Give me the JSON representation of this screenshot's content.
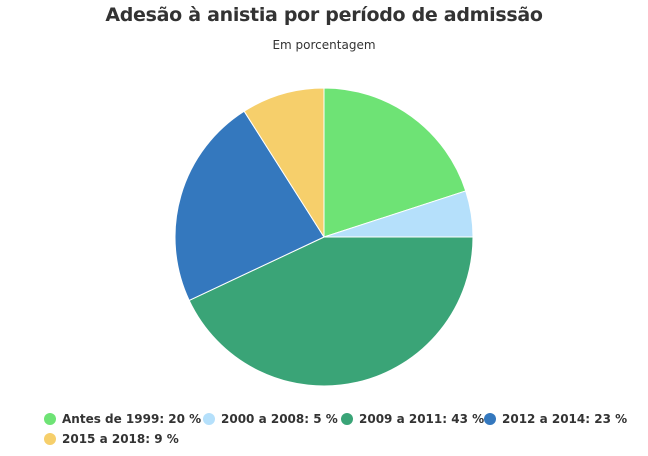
{
  "chart_data": {
    "type": "pie",
    "title": "Adesão à anistia por período de admissão",
    "subtitle": "Em porcentagem",
    "unit": "%",
    "legend_position": "bottom",
    "slices": [
      {
        "label": "Antes de 1999",
        "value": 20,
        "legend_text": "Antes de 1999: 20 %",
        "color": "#6ee375"
      },
      {
        "label": "2000 a 2008",
        "value": 5,
        "legend_text": "2000 a 2008: 5 %",
        "color": "#b5e0fb"
      },
      {
        "label": "2009 a 2011",
        "value": 43,
        "legend_text": "2009 a 2011: 43 %",
        "color": "#3aa477"
      },
      {
        "label": "2012 a 2014",
        "value": 23,
        "legend_text": "2012 a 2014: 23 %",
        "color": "#3478be"
      },
      {
        "label": "2015 a 2018",
        "value": 9,
        "legend_text": "2015 a 2018: 9 %",
        "color": "#f6cf6b"
      }
    ]
  }
}
